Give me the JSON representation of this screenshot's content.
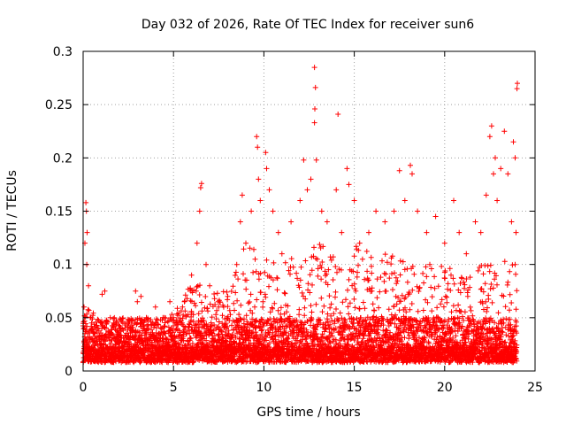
{
  "chart_data": {
    "type": "scatter",
    "title": "Day 032 of 2026, Rate Of TEC Index for receiver sun6",
    "xlabel": "GPS time / hours",
    "ylabel": "ROTI / TECUs",
    "xlim": [
      0,
      25
    ],
    "ylim": [
      0,
      0.3
    ],
    "xticks": [
      0,
      5,
      10,
      15,
      20,
      25
    ],
    "xtick_labels": [
      "0",
      "5",
      "10",
      "15",
      "20",
      "25"
    ],
    "yticks": [
      0,
      0.05,
      0.1,
      0.15,
      0.2,
      0.25,
      0.3
    ],
    "ytick_labels": [
      "0",
      "0.05",
      "0.1",
      "0.15",
      "0.2",
      "0.25",
      "0.3"
    ],
    "grid": true,
    "marker": "plus",
    "color": "#ff0000",
    "series": [
      {
        "name": "ROTI",
        "points": [
          [
            0.05,
            0.06
          ],
          [
            0.1,
            0.12
          ],
          [
            0.15,
            0.158
          ],
          [
            0.18,
            0.15
          ],
          [
            0.2,
            0.1
          ],
          [
            0.22,
            0.13
          ],
          [
            0.3,
            0.08
          ],
          [
            0.4,
            0.05
          ],
          [
            0.5,
            0.04
          ],
          [
            1.0,
            0.045
          ],
          [
            1.05,
            0.072
          ],
          [
            1.2,
            0.075
          ],
          [
            1.5,
            0.05
          ],
          [
            2.0,
            0.04
          ],
          [
            2.5,
            0.045
          ],
          [
            2.9,
            0.075
          ],
          [
            3.0,
            0.065
          ],
          [
            3.2,
            0.07
          ],
          [
            3.5,
            0.05
          ],
          [
            4.0,
            0.06
          ],
          [
            4.5,
            0.05
          ],
          [
            4.8,
            0.065
          ],
          [
            5.0,
            0.05
          ],
          [
            5.5,
            0.06
          ],
          [
            6.0,
            0.09
          ],
          [
            6.3,
            0.12
          ],
          [
            6.5,
            0.172
          ],
          [
            6.55,
            0.176
          ],
          [
            6.45,
            0.15
          ],
          [
            6.8,
            0.1
          ],
          [
            7.0,
            0.08
          ],
          [
            7.5,
            0.06
          ],
          [
            8.0,
            0.07
          ],
          [
            8.5,
            0.1
          ],
          [
            8.7,
            0.14
          ],
          [
            8.8,
            0.165
          ],
          [
            9.0,
            0.12
          ],
          [
            9.3,
            0.15
          ],
          [
            9.6,
            0.22
          ],
          [
            9.65,
            0.21
          ],
          [
            9.7,
            0.18
          ],
          [
            9.8,
            0.16
          ],
          [
            10.1,
            0.205
          ],
          [
            10.15,
            0.19
          ],
          [
            10.3,
            0.17
          ],
          [
            10.5,
            0.15
          ],
          [
            10.8,
            0.13
          ],
          [
            11.0,
            0.11
          ],
          [
            11.5,
            0.14
          ],
          [
            12.0,
            0.16
          ],
          [
            12.2,
            0.198
          ],
          [
            12.4,
            0.17
          ],
          [
            12.6,
            0.18
          ],
          [
            12.8,
            0.285
          ],
          [
            12.85,
            0.266
          ],
          [
            12.82,
            0.246
          ],
          [
            12.8,
            0.233
          ],
          [
            12.9,
            0.198
          ],
          [
            13.2,
            0.15
          ],
          [
            13.5,
            0.14
          ],
          [
            14.1,
            0.241
          ],
          [
            14.0,
            0.17
          ],
          [
            14.3,
            0.13
          ],
          [
            14.6,
            0.19
          ],
          [
            14.7,
            0.175
          ],
          [
            15.0,
            0.16
          ],
          [
            15.3,
            0.12
          ],
          [
            15.8,
            0.13
          ],
          [
            16.2,
            0.15
          ],
          [
            16.7,
            0.14
          ],
          [
            17.2,
            0.15
          ],
          [
            17.5,
            0.188
          ],
          [
            17.8,
            0.16
          ],
          [
            18.1,
            0.193
          ],
          [
            18.2,
            0.185
          ],
          [
            18.5,
            0.15
          ],
          [
            19.0,
            0.13
          ],
          [
            19.5,
            0.145
          ],
          [
            20.0,
            0.12
          ],
          [
            20.5,
            0.16
          ],
          [
            20.8,
            0.13
          ],
          [
            21.2,
            0.11
          ],
          [
            21.7,
            0.14
          ],
          [
            22.0,
            0.13
          ],
          [
            22.3,
            0.165
          ],
          [
            22.5,
            0.22
          ],
          [
            22.6,
            0.23
          ],
          [
            22.7,
            0.185
          ],
          [
            22.8,
            0.2
          ],
          [
            22.9,
            0.16
          ],
          [
            23.1,
            0.19
          ],
          [
            23.3,
            0.225
          ],
          [
            23.5,
            0.185
          ],
          [
            23.7,
            0.14
          ],
          [
            23.8,
            0.215
          ],
          [
            23.9,
            0.2
          ],
          [
            24.0,
            0.265
          ],
          [
            24.02,
            0.27
          ],
          [
            23.95,
            0.13
          ],
          [
            23.9,
            0.1
          ]
        ],
        "band": {
          "description": "dense background cloud of ROTI values spanning the full day",
          "x_range": [
            0,
            24
          ],
          "floor_min": 0.008,
          "floor_max": 0.022,
          "typical_max": 0.05,
          "enhanced_max_by_hour": [
            [
              0,
              0.06
            ],
            [
              1,
              0.055
            ],
            [
              2,
              0.045
            ],
            [
              3,
              0.05
            ],
            [
              4,
              0.05
            ],
            [
              5,
              0.055
            ],
            [
              6,
              0.09
            ],
            [
              7,
              0.07
            ],
            [
              8,
              0.08
            ],
            [
              9,
              0.12
            ],
            [
              10,
              0.11
            ],
            [
              11,
              0.1
            ],
            [
              12,
              0.12
            ],
            [
              13,
              0.12
            ],
            [
              14,
              0.11
            ],
            [
              15,
              0.12
            ],
            [
              16,
              0.11
            ],
            [
              17,
              0.11
            ],
            [
              18,
              0.1
            ],
            [
              19,
              0.1
            ],
            [
              20,
              0.1
            ],
            [
              21,
              0.1
            ],
            [
              22,
              0.1
            ],
            [
              23,
              0.11
            ],
            [
              24,
              0.1
            ]
          ]
        }
      }
    ]
  }
}
